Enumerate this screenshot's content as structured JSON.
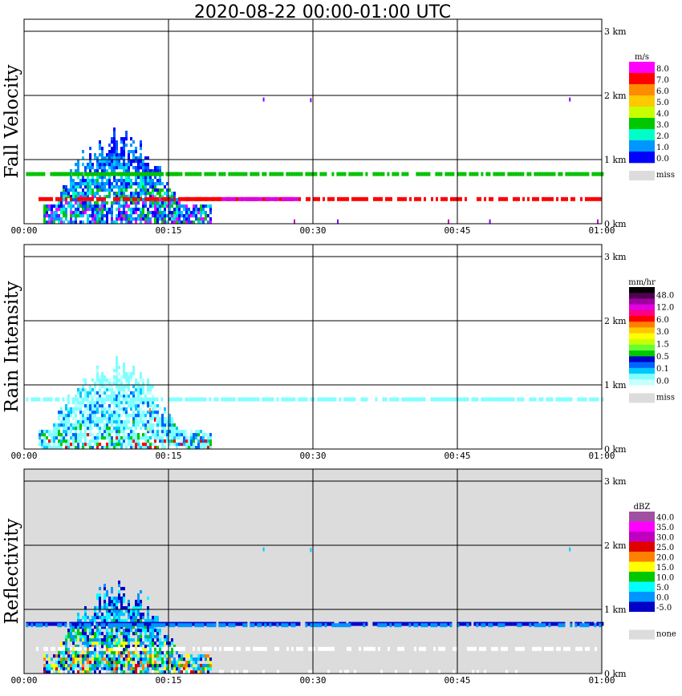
{
  "chart_data": [
    {
      "type": "heatmap",
      "title": "2020-08-22   00:00-01:00 UTC",
      "ylabel": "Fall Velocity",
      "x_ticks": [
        "00:00",
        "00:15",
        "00:30",
        "00:45",
        "01:00"
      ],
      "y_ticks": [
        "0 km",
        "1 km",
        "2 km",
        "3 km"
      ],
      "xlim_min": [
        0,
        60
      ],
      "ylim_km": [
        0,
        3.1
      ],
      "background": "#ffffff",
      "colorbar": {
        "unit": "m/s",
        "labels": [
          "8.0",
          "7.0",
          "6.0",
          "5.0",
          "4.0",
          "3.0",
          "2.0",
          "1.0",
          "0.0"
        ],
        "colors": [
          "#ff00ff",
          "#ff0000",
          "#ff8c00",
          "#ffc800",
          "#c8ff00",
          "#00c800",
          "#00ffc8",
          "#0096ff",
          "#0000ff"
        ],
        "missing_label": "miss",
        "missing_color": "#dcdcdc"
      },
      "features": [
        {
          "kind": "band",
          "t0": 0.2,
          "t1": 60,
          "h": 0.78,
          "color": "#00c000",
          "density": 0.82
        },
        {
          "kind": "band",
          "t0": 1.5,
          "t1": 60,
          "h": 0.39,
          "color": "#ff0000",
          "density": 0.75
        },
        {
          "kind": "band",
          "t0": 20.5,
          "t1": 28.5,
          "h": 0.39,
          "color": "#e000e0",
          "density": 0.9
        },
        {
          "kind": "band",
          "t0": 16.5,
          "t1": 20.5,
          "h": 0.39,
          "color": "#ff0000",
          "density": 0.9
        },
        {
          "kind": "band",
          "t0": 3,
          "t1": 16,
          "h": 0.78,
          "color": "#00c000",
          "density": 0.95
        }
      ],
      "storm": {
        "t0": 2.0,
        "t1": 19.5,
        "top_km": 1.5,
        "colors": [
          "#0000ff",
          "#0050ff",
          "#0096ff",
          "#00c8ff",
          "#00ffc8",
          "#00c800",
          "#ff00ff",
          "#8000ff"
        ]
      },
      "points": [
        {
          "t": 24.8,
          "h": 1.93,
          "color": "#8000ff"
        },
        {
          "t": 29.7,
          "h": 1.92,
          "color": "#8000ff"
        },
        {
          "t": 56.6,
          "h": 1.93,
          "color": "#8000ff"
        },
        {
          "t": 28.0,
          "h": 0.03,
          "color": "#c000c0"
        },
        {
          "t": 32.5,
          "h": 0.03,
          "color": "#8000ff"
        },
        {
          "t": 44.0,
          "h": 0.03,
          "color": "#c000c0"
        },
        {
          "t": 48.3,
          "h": 0.03,
          "color": "#8000ff"
        },
        {
          "t": 59.5,
          "h": 0.03,
          "color": "#c000c0"
        }
      ]
    },
    {
      "type": "heatmap",
      "ylabel": "Rain Intensity",
      "x_ticks": [
        "00:00",
        "00:15",
        "00:30",
        "00:45",
        "01:00"
      ],
      "y_ticks": [
        "0 km",
        "1 km",
        "2 km",
        "3 km"
      ],
      "xlim_min": [
        0,
        60
      ],
      "ylim_km": [
        0,
        3.1
      ],
      "background": "#ffffff",
      "colorbar": {
        "unit": "mm/hr",
        "labels": [
          "48.0",
          "12.0",
          "6.0",
          "3.0",
          "1.5",
          "0.5",
          "0.1",
          "0.0"
        ],
        "colors": [
          "#000000",
          "#500050",
          "#a000a0",
          "#e000e0",
          "#ff0080",
          "#ff0000",
          "#ff8000",
          "#ffc800",
          "#ffff00",
          "#c8ff00",
          "#64ff32",
          "#00c800",
          "#0000c8",
          "#0064ff",
          "#00c8ff",
          "#80ffff",
          "#c8ffff"
        ],
        "missing_label": "miss",
        "missing_color": "#dcdcdc"
      },
      "features": [
        {
          "kind": "band",
          "t0": 0.2,
          "t1": 60,
          "h": 0.78,
          "color": "#80ffff",
          "density": 0.8
        }
      ],
      "storm": {
        "t0": 1.5,
        "t1": 19.5,
        "top_km": 1.45,
        "colors": [
          "#80ffff",
          "#80ffff",
          "#c0ffff",
          "#00c8ff",
          "#0064ff",
          "#80ffff",
          "#00c800",
          "#ff0000"
        ]
      },
      "points": [
        {
          "t": 13.5,
          "h": 0.45,
          "color": "#ff0000"
        },
        {
          "t": 13.0,
          "h": 0.6,
          "color": "#ff8000"
        },
        {
          "t": 12.8,
          "h": 0.3,
          "color": "#ffff00"
        }
      ]
    },
    {
      "type": "heatmap",
      "ylabel": "Reflectivity",
      "x_ticks": [
        "00:00",
        "00:15",
        "00:30",
        "00:45",
        "01:00"
      ],
      "y_ticks": [
        "0 km",
        "1 km",
        "2 km",
        "3 km"
      ],
      "xlim_min": [
        0,
        60
      ],
      "ylim_km": [
        0,
        3.1
      ],
      "background": "#dcdcdc",
      "colorbar": {
        "unit": "dBZ",
        "labels": [
          "40.0",
          "35.0",
          "30.0",
          "25.0",
          "20.0",
          "15.0",
          "10.0",
          "5.0",
          "0.0",
          "-5.0"
        ],
        "colors": [
          "#a050a0",
          "#ff00ff",
          "#c000c0",
          "#e00000",
          "#ff8000",
          "#ffff00",
          "#00c800",
          "#00ffff",
          "#0096ff",
          "#0000c8",
          "#ffffff"
        ],
        "missing_label": "none",
        "missing_color": "#dcdcdc"
      },
      "features": [
        {
          "kind": "band",
          "t0": 0.2,
          "t1": 60,
          "h": 0.78,
          "color": "#0000c8",
          "density": 0.9
        },
        {
          "kind": "band",
          "t0": 0.2,
          "t1": 60,
          "h": 0.76,
          "color": "#0096ff",
          "density": 0.55
        },
        {
          "kind": "band",
          "t0": 1.0,
          "t1": 60,
          "h": 0.39,
          "color": "#ffffff",
          "density": 0.6
        },
        {
          "kind": "band",
          "t0": 0.5,
          "t1": 52,
          "h": 0.03,
          "color": "#ffffff",
          "density": 0.25
        }
      ],
      "storm": {
        "t0": 2.0,
        "t1": 19.5,
        "top_km": 1.45,
        "colors": [
          "#0000c8",
          "#0096ff",
          "#00ffff",
          "#00c8ff",
          "#00c800",
          "#ffff00",
          "#ff8000",
          "#e00000"
        ]
      },
      "points": [
        {
          "t": 24.8,
          "h": 1.93,
          "color": "#00c8ff"
        },
        {
          "t": 29.7,
          "h": 1.92,
          "color": "#00c8ff"
        },
        {
          "t": 56.6,
          "h": 1.93,
          "color": "#00c8ff"
        }
      ]
    }
  ]
}
